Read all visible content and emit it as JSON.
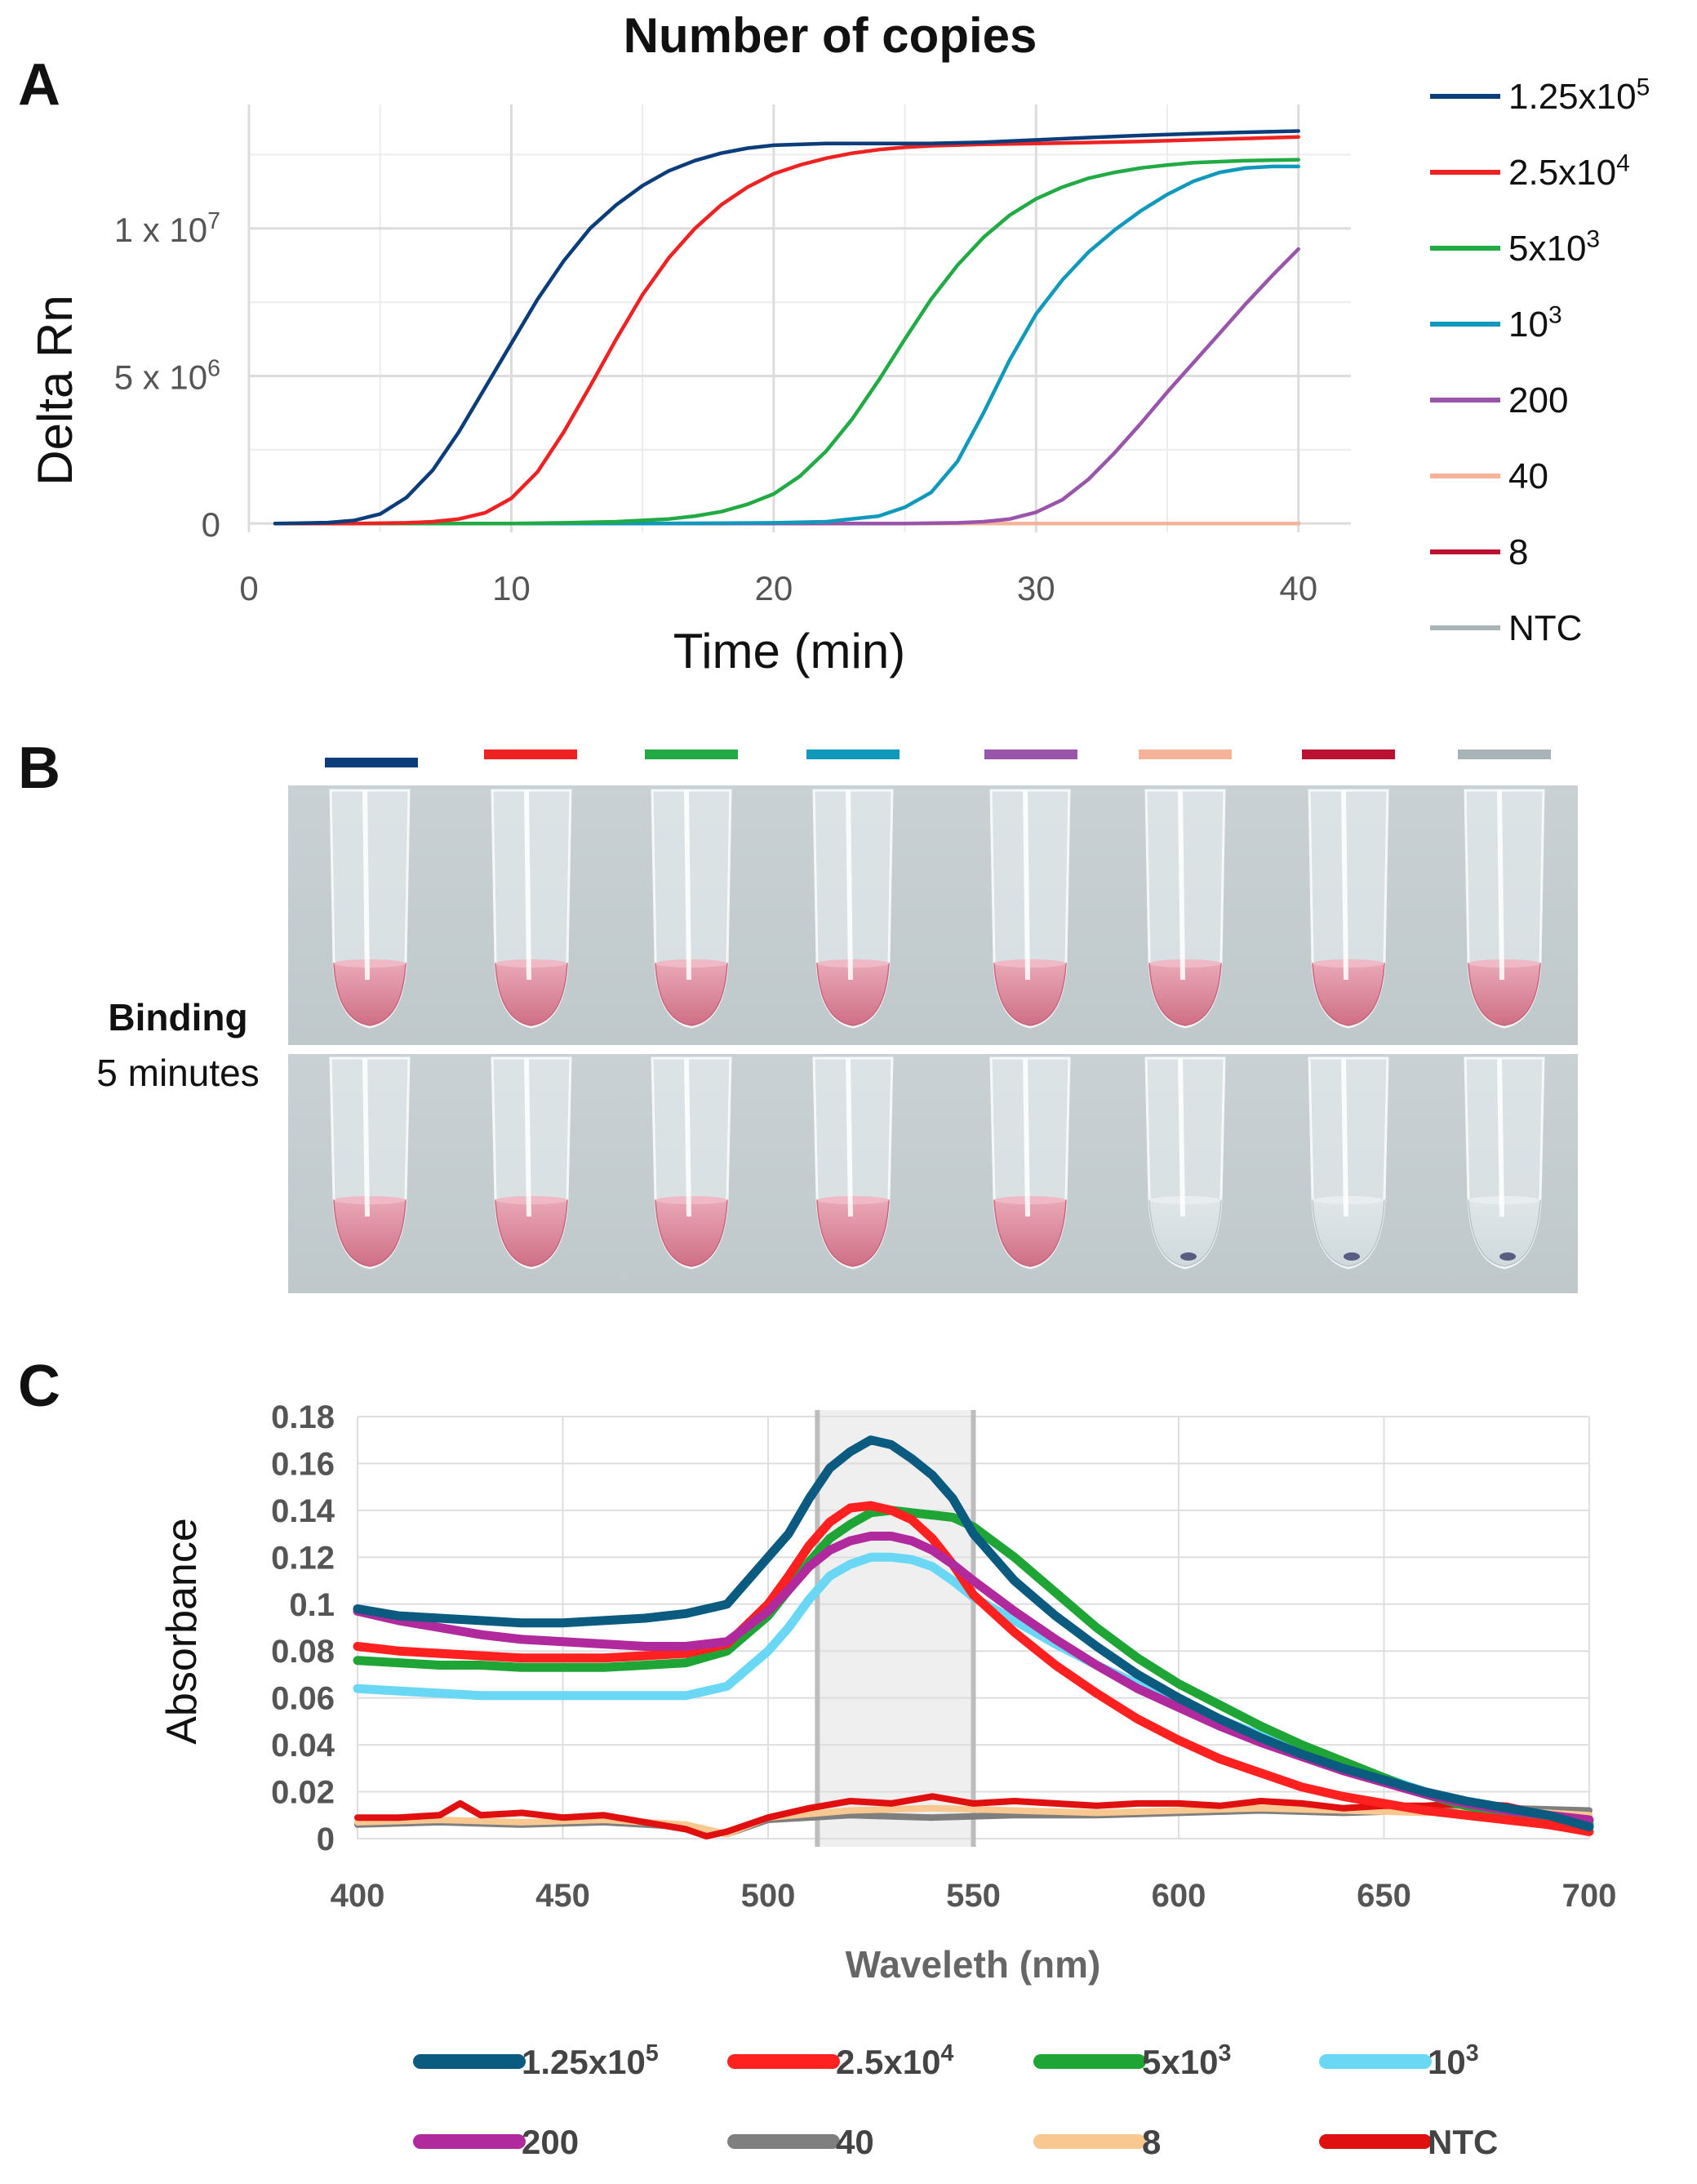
{
  "figure": {
    "panel_labels": [
      "A",
      "B",
      "C"
    ]
  },
  "chart_data": [
    {
      "type": "line",
      "panel": "A",
      "title": "Number of copies",
      "xlabel": "Time (min)",
      "ylabel": "Delta Rn",
      "xlim": [
        0,
        42
      ],
      "ylim": [
        -300000,
        14200000
      ],
      "xticks": [
        0,
        10,
        20,
        30,
        40
      ],
      "xtick_labels": [
        "0",
        "10",
        "20",
        "30",
        "40"
      ],
      "yticks": [
        0,
        5000000,
        10000000
      ],
      "ytick_labels": [
        {
          "base": "0",
          "exp": ""
        },
        {
          "base": "5 x 10",
          "exp": "6"
        },
        {
          "base": "1 x 10",
          "exp": "7"
        }
      ],
      "grid": true,
      "legend_position": "right",
      "series": [
        {
          "name": "1.25x10^5",
          "label_base": "1.25x10",
          "label_exp": "5",
          "color": "#0b3d7a",
          "x": [
            1,
            2,
            3,
            4,
            5,
            6,
            7,
            8,
            9,
            10,
            11,
            12,
            13,
            14,
            15,
            16,
            17,
            18,
            19,
            20,
            22,
            24,
            26,
            28,
            30,
            32,
            34,
            36,
            38,
            40
          ],
          "y": [
            0,
            10000,
            30000,
            100000,
            320000,
            880000,
            1800000,
            3100000,
            4600000,
            6100000,
            7600000,
            8900000,
            10000000,
            10800000,
            11450000,
            11950000,
            12300000,
            12550000,
            12720000,
            12820000,
            12880000,
            12880000,
            12880000,
            12920000,
            13000000,
            13080000,
            13150000,
            13210000,
            13260000,
            13300000
          ]
        },
        {
          "name": "2.5x10^4",
          "label_base": "2.5x10",
          "label_exp": "4",
          "color": "#ee2222",
          "x": [
            1,
            4,
            6,
            7,
            8,
            9,
            10,
            11,
            12,
            13,
            14,
            15,
            16,
            17,
            18,
            19,
            20,
            21,
            22,
            23,
            24,
            25,
            26,
            28,
            30,
            32,
            34,
            36,
            38,
            40
          ],
          "y": [
            0,
            0,
            20000,
            60000,
            150000,
            360000,
            850000,
            1750000,
            3100000,
            4650000,
            6250000,
            7750000,
            9000000,
            10000000,
            10800000,
            11400000,
            11850000,
            12150000,
            12380000,
            12550000,
            12670000,
            12750000,
            12800000,
            12850000,
            12880000,
            12910000,
            12950000,
            13000000,
            13050000,
            13100000
          ]
        },
        {
          "name": "5x10^3",
          "label_base": "5x10",
          "label_exp": "3",
          "color": "#22aa44",
          "x": [
            1,
            10,
            12,
            14,
            16,
            17,
            18,
            19,
            20,
            21,
            22,
            23,
            24,
            25,
            26,
            27,
            28,
            29,
            30,
            31,
            32,
            33,
            34,
            35,
            36,
            38,
            40
          ],
          "y": [
            0,
            0,
            20000,
            60000,
            150000,
            250000,
            400000,
            650000,
            1000000,
            1600000,
            2450000,
            3550000,
            4850000,
            6250000,
            7600000,
            8750000,
            9700000,
            10450000,
            11000000,
            11400000,
            11700000,
            11900000,
            12050000,
            12150000,
            12230000,
            12300000,
            12330000
          ]
        },
        {
          "name": "10^3",
          "label_base": "10",
          "label_exp": "3",
          "color": "#1199bb",
          "x": [
            1,
            15,
            20,
            22,
            24,
            25,
            26,
            27,
            28,
            29,
            30,
            31,
            32,
            33,
            34,
            35,
            36,
            37,
            38,
            39,
            40
          ],
          "y": [
            0,
            0,
            20000,
            60000,
            250000,
            550000,
            1050000,
            2100000,
            3750000,
            5550000,
            7100000,
            8250000,
            9200000,
            9950000,
            10600000,
            11150000,
            11600000,
            11900000,
            12050000,
            12100000,
            12100000
          ]
        },
        {
          "name": "200",
          "label_base": "200",
          "label_exp": "",
          "color": "#9955aa",
          "x": [
            1,
            25,
            27,
            28,
            29,
            30,
            31,
            32,
            33,
            34,
            35,
            36,
            37,
            38,
            39,
            40
          ],
          "y": [
            0,
            0,
            20000,
            60000,
            150000,
            380000,
            800000,
            1500000,
            2400000,
            3400000,
            4450000,
            5450000,
            6450000,
            7450000,
            8400000,
            9300000
          ]
        },
        {
          "name": "40",
          "label_base": "40",
          "label_exp": "",
          "color": "#f5b39a",
          "x": [
            1,
            40
          ],
          "y": [
            0,
            0
          ]
        },
        {
          "name": "8",
          "label_base": "8",
          "label_exp": "",
          "color": "#bb1133",
          "x": [
            1,
            40
          ],
          "y": [
            0,
            0
          ]
        },
        {
          "name": "NTC",
          "label_base": "NTC",
          "label_exp": "",
          "color": "#a9b4b8",
          "x": [
            1,
            40
          ],
          "y": [
            0,
            0
          ]
        }
      ]
    },
    {
      "type": "line",
      "panel": "C",
      "title": "",
      "xlabel": "Waveleth (nm)",
      "ylabel": "Absorbance",
      "xlim": [
        400,
        700
      ],
      "ylim": [
        0,
        0.18
      ],
      "xticks": [
        400,
        450,
        500,
        550,
        600,
        650,
        700
      ],
      "xtick_labels": [
        "400",
        "450",
        "500",
        "550",
        "600",
        "650",
        "700"
      ],
      "yticks": [
        0,
        0.02,
        0.04,
        0.06,
        0.08,
        0.1,
        0.12,
        0.14,
        0.16,
        0.18
      ],
      "ytick_labels": [
        "0",
        "0.02",
        "0.04",
        "0.06",
        "0.08",
        "0.1",
        "0.12",
        "0.14",
        "0.16",
        "0.18"
      ],
      "grid": true,
      "highlight_band": [
        512,
        550
      ],
      "legend_position": "bottom",
      "series": [
        {
          "name": "1.25x10^5",
          "label_base": "1.25x10",
          "label_exp": "5",
          "color": "#0b5a80",
          "x": [
            400,
            410,
            420,
            430,
            440,
            450,
            460,
            470,
            480,
            490,
            500,
            505,
            510,
            515,
            520,
            525,
            530,
            535,
            540,
            545,
            550,
            560,
            570,
            580,
            590,
            600,
            610,
            620,
            630,
            640,
            650,
            660,
            670,
            680,
            690,
            700
          ],
          "y": [
            0.098,
            0.095,
            0.094,
            0.093,
            0.092,
            0.092,
            0.093,
            0.094,
            0.096,
            0.1,
            0.12,
            0.13,
            0.145,
            0.158,
            0.165,
            0.17,
            0.168,
            0.162,
            0.155,
            0.145,
            0.13,
            0.11,
            0.095,
            0.082,
            0.07,
            0.06,
            0.051,
            0.043,
            0.036,
            0.03,
            0.025,
            0.02,
            0.016,
            0.013,
            0.01,
            0.005
          ]
        },
        {
          "name": "2.5x10^4",
          "label_base": "2.5x10",
          "label_exp": "4",
          "color": "#ff2020",
          "x": [
            400,
            410,
            420,
            430,
            440,
            450,
            460,
            470,
            480,
            490,
            500,
            505,
            510,
            515,
            520,
            525,
            530,
            535,
            540,
            545,
            550,
            560,
            570,
            580,
            590,
            600,
            610,
            620,
            630,
            640,
            650,
            660,
            670,
            680,
            690,
            700
          ],
          "y": [
            0.082,
            0.08,
            0.079,
            0.078,
            0.077,
            0.077,
            0.077,
            0.078,
            0.079,
            0.083,
            0.1,
            0.112,
            0.125,
            0.135,
            0.141,
            0.142,
            0.14,
            0.136,
            0.128,
            0.117,
            0.104,
            0.088,
            0.074,
            0.062,
            0.051,
            0.042,
            0.034,
            0.028,
            0.022,
            0.018,
            0.015,
            0.012,
            0.01,
            0.008,
            0.006,
            0.003
          ]
        },
        {
          "name": "5x10^3",
          "label_base": "5x10",
          "label_exp": "3",
          "color": "#1ea535",
          "x": [
            400,
            410,
            420,
            430,
            440,
            450,
            460,
            470,
            480,
            490,
            500,
            505,
            510,
            515,
            520,
            525,
            530,
            535,
            540,
            545,
            550,
            560,
            570,
            580,
            590,
            600,
            610,
            620,
            630,
            640,
            650,
            660,
            670,
            680,
            690,
            700
          ],
          "y": [
            0.076,
            0.075,
            0.074,
            0.074,
            0.073,
            0.073,
            0.073,
            0.074,
            0.075,
            0.08,
            0.095,
            0.106,
            0.118,
            0.128,
            0.134,
            0.139,
            0.14,
            0.139,
            0.138,
            0.137,
            0.133,
            0.12,
            0.105,
            0.09,
            0.077,
            0.066,
            0.057,
            0.048,
            0.04,
            0.033,
            0.026,
            0.019,
            0.014,
            0.011,
            0.009,
            0.006
          ]
        },
        {
          "name": "10^3",
          "label_base": "10",
          "label_exp": "3",
          "color": "#6ad7f5",
          "x": [
            400,
            410,
            420,
            430,
            440,
            450,
            460,
            470,
            480,
            490,
            500,
            505,
            510,
            515,
            520,
            525,
            530,
            535,
            540,
            545,
            550,
            560,
            570,
            580,
            590,
            600,
            610,
            620,
            630,
            640,
            650,
            660,
            670,
            680,
            690,
            700
          ],
          "y": [
            0.064,
            0.063,
            0.062,
            0.061,
            0.061,
            0.061,
            0.061,
            0.061,
            0.061,
            0.065,
            0.08,
            0.09,
            0.102,
            0.112,
            0.117,
            0.12,
            0.12,
            0.119,
            0.116,
            0.11,
            0.103,
            0.093,
            0.083,
            0.074,
            0.066,
            0.058,
            0.051,
            0.044,
            0.038,
            0.032,
            0.026,
            0.02,
            0.015,
            0.012,
            0.01,
            0.007
          ]
        },
        {
          "name": "200",
          "label_base": "200",
          "label_exp": "",
          "color": "#b02a9d",
          "x": [
            400,
            410,
            420,
            430,
            440,
            450,
            460,
            470,
            480,
            490,
            500,
            505,
            510,
            515,
            520,
            525,
            530,
            535,
            540,
            545,
            550,
            560,
            570,
            580,
            590,
            600,
            610,
            620,
            630,
            640,
            650,
            660,
            670,
            680,
            690,
            700
          ],
          "y": [
            0.097,
            0.093,
            0.09,
            0.087,
            0.085,
            0.084,
            0.083,
            0.082,
            0.082,
            0.084,
            0.097,
            0.106,
            0.116,
            0.123,
            0.127,
            0.129,
            0.129,
            0.127,
            0.123,
            0.117,
            0.11,
            0.097,
            0.085,
            0.074,
            0.064,
            0.056,
            0.048,
            0.041,
            0.035,
            0.029,
            0.024,
            0.019,
            0.015,
            0.012,
            0.01,
            0.008
          ]
        },
        {
          "name": "40",
          "label_base": "40",
          "label_exp": "",
          "color": "#7f7f7f",
          "x": [
            400,
            420,
            440,
            460,
            480,
            490,
            500,
            520,
            540,
            560,
            580,
            600,
            620,
            640,
            660,
            680,
            700
          ],
          "y": [
            0.006,
            0.007,
            0.006,
            0.007,
            0.005,
            0.002,
            0.008,
            0.01,
            0.009,
            0.01,
            0.01,
            0.011,
            0.012,
            0.011,
            0.012,
            0.013,
            0.012
          ]
        },
        {
          "name": "8",
          "label_base": "8",
          "label_exp": "",
          "color": "#f8c890",
          "x": [
            400,
            420,
            440,
            460,
            480,
            490,
            500,
            520,
            540,
            560,
            580,
            600,
            620,
            640,
            660,
            680,
            700
          ],
          "y": [
            0.007,
            0.008,
            0.007,
            0.008,
            0.006,
            0.002,
            0.009,
            0.012,
            0.013,
            0.012,
            0.011,
            0.012,
            0.013,
            0.012,
            0.011,
            0.012,
            0.01
          ]
        },
        {
          "name": "NTC",
          "label_base": "NTC",
          "label_exp": "",
          "color": "#e01010",
          "x": [
            400,
            410,
            420,
            425,
            430,
            440,
            450,
            460,
            470,
            480,
            485,
            490,
            500,
            510,
            520,
            530,
            540,
            550,
            560,
            570,
            580,
            590,
            600,
            610,
            620,
            630,
            640,
            650,
            660,
            670,
            680,
            690,
            700
          ],
          "y": [
            0.009,
            0.009,
            0.01,
            0.015,
            0.01,
            0.011,
            0.009,
            0.01,
            0.007,
            0.004,
            0.001,
            0.003,
            0.009,
            0.013,
            0.016,
            0.015,
            0.018,
            0.015,
            0.016,
            0.015,
            0.014,
            0.015,
            0.015,
            0.014,
            0.016,
            0.015,
            0.013,
            0.014,
            0.014,
            0.015,
            0.014,
            0.01,
            0.008
          ]
        }
      ]
    }
  ],
  "panel_b": {
    "color_bars": [
      "#0b3d7a",
      "#ee2222",
      "#22aa44",
      "#1199bb",
      "#9955aa",
      "#f5b39a",
      "#bb1133",
      "#a9b4b8"
    ],
    "label_bold": "Binding",
    "label_sub": "5 minutes",
    "top_row_tubes": [
      "pink",
      "pink",
      "pink",
      "pink",
      "pink",
      "pink",
      "pink",
      "pink"
    ],
    "bottom_row_tubes": [
      "pink",
      "pink",
      "pink",
      "pink",
      "pink",
      "clear",
      "clear",
      "clear"
    ]
  }
}
